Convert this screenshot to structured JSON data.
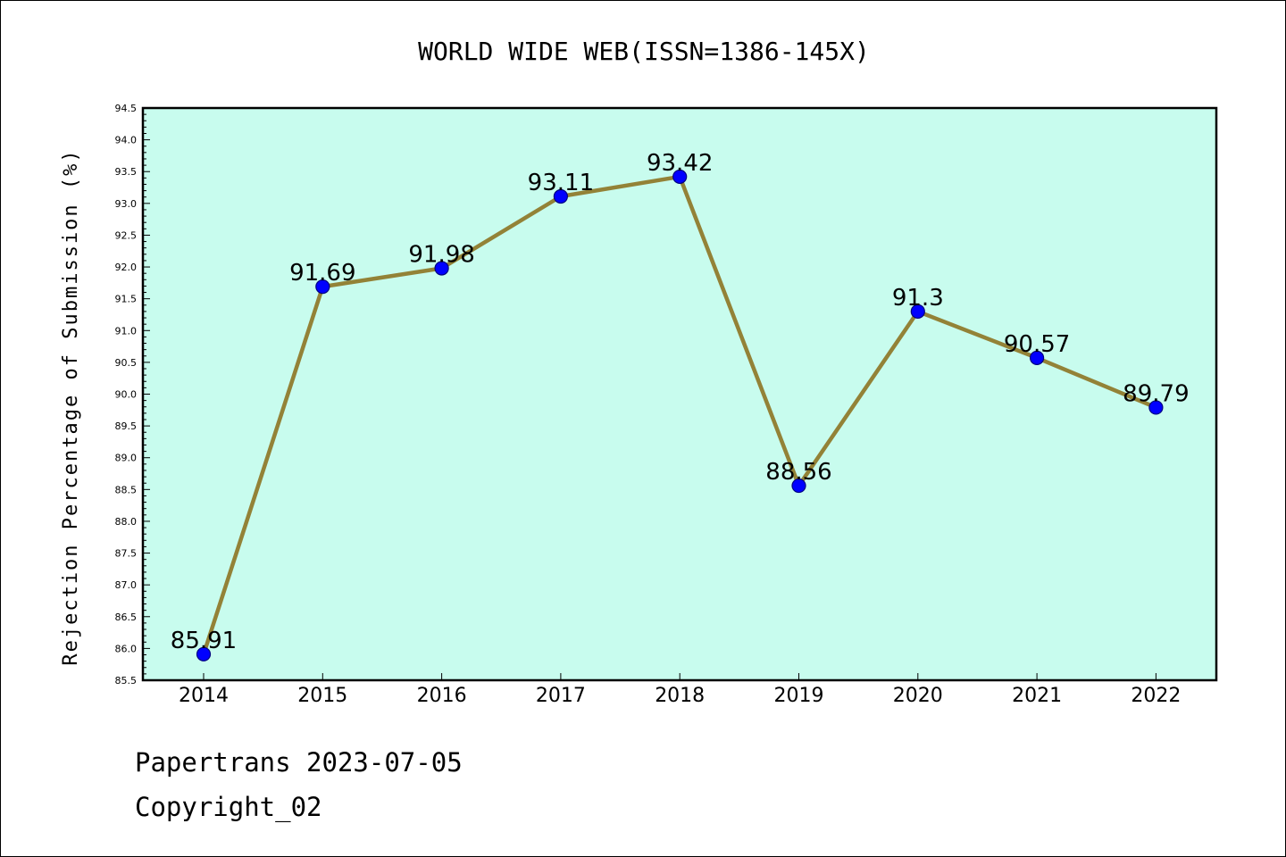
{
  "chart_data": {
    "type": "line",
    "title": "WORLD WIDE WEB(ISSN=1386-145X)",
    "xlabel": "",
    "ylabel": "Rejection Percentage of Submission (%)",
    "categories": [
      "2014",
      "2015",
      "2016",
      "2017",
      "2018",
      "2019",
      "2020",
      "2021",
      "2022"
    ],
    "series": [
      {
        "values": [
          85.91,
          91.69,
          91.98,
          93.11,
          93.42,
          88.56,
          91.3,
          90.57,
          89.79
        ]
      }
    ],
    "data_labels": [
      "85.91",
      "91.69",
      "91.98",
      "93.11",
      "93.42",
      "88.56",
      "91.3",
      "90.57",
      "89.79"
    ],
    "ylim": [
      85.5,
      94.5
    ],
    "yticks": [
      "85.5",
      "86.0",
      "86.5",
      "87.0",
      "87.5",
      "88.0",
      "88.5",
      "89.0",
      "89.5",
      "90.0",
      "90.5",
      "91.0",
      "91.5",
      "92.0",
      "92.5",
      "93.0",
      "93.5",
      "94.0",
      "94.5"
    ],
    "grid": false,
    "colors": {
      "plot_background": "#c8fcee",
      "line": "#938237",
      "marker_fill": "#0000ff",
      "marker_edge": "#000080"
    }
  },
  "footer": {
    "line1": "Papertrans 2023-07-05",
    "line2": "Copyright_02"
  }
}
